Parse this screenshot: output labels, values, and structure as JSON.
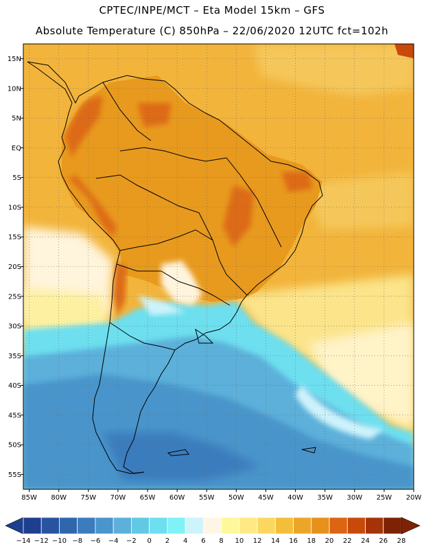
{
  "header": {
    "line1": "CPTEC/INPE/MCT –  Eta Model 15km – GFS",
    "line2": "Absolute Temperature (C) 850hPa – 22/06/2020 12UTC fct=102h"
  },
  "map": {
    "lat_labels": [
      "15N",
      "10N",
      "5N",
      "EQ",
      "5S",
      "10S",
      "15S",
      "20S",
      "25S",
      "30S",
      "35S",
      "40S",
      "45S",
      "50S",
      "55S"
    ],
    "lon_labels": [
      "85W",
      "80W",
      "75W",
      "70W",
      "65W",
      "60W",
      "55W",
      "50W",
      "45W",
      "40W",
      "35W",
      "30W",
      "25W",
      "20W"
    ],
    "lat_range": [
      17.5,
      -57.5
    ],
    "lon_range": [
      -86,
      -20
    ]
  },
  "colorbar": {
    "labels": [
      "-14",
      "-12",
      "-10",
      "-8",
      "-6",
      "-4",
      "-2",
      "0",
      "2",
      "4",
      "6",
      "8",
      "10",
      "12",
      "14",
      "16",
      "18",
      "20",
      "22",
      "24",
      "26",
      "28"
    ],
    "colors": [
      "#1e3f8f",
      "#2753a0",
      "#3066ae",
      "#3a7cbd",
      "#4a95cb",
      "#5cb0da",
      "#62c9e4",
      "#6ddfef",
      "#7ef2f5",
      "#cdf3fb",
      "#fff5e4",
      "#fff79a",
      "#ffe984",
      "#fcd760",
      "#f3bf3a",
      "#eda528",
      "#e8901c",
      "#dd6410",
      "#c84a0b",
      "#a63308",
      "#7e2205"
    ]
  },
  "colors": {
    "background": "#ffffff",
    "ocean_warm": "#f2b43b",
    "land_warm": "#e89a1e",
    "hot": "#dd6a12",
    "cold_ocean": "#4aa3d3",
    "outline": "#000000"
  }
}
